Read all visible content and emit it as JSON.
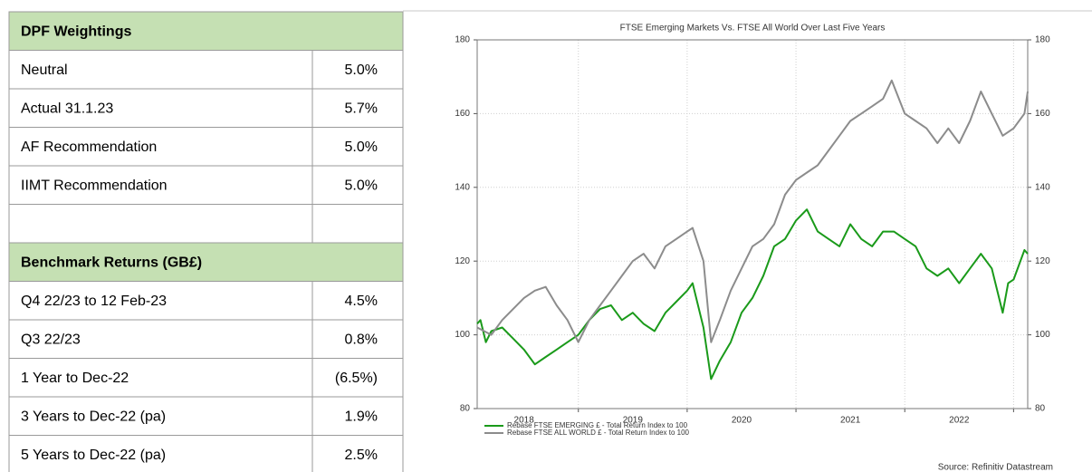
{
  "table": {
    "sections": [
      {
        "title": "DPF Weightings",
        "rows": [
          [
            "Neutral",
            "5.0%"
          ],
          [
            "Actual 31.1.23",
            "5.7%"
          ],
          [
            "AF Recommendation",
            "5.0%"
          ],
          [
            "IIMT Recommendation",
            "5.0%"
          ]
        ]
      },
      {
        "title": "Benchmark Returns (GB£)",
        "rows": [
          [
            "Q4 22/23 to 12 Feb-23",
            "4.5%"
          ],
          [
            "Q3 22/23",
            "0.8%"
          ],
          [
            "1 Year to Dec-22",
            "(6.5%)"
          ],
          [
            "3 Years to Dec-22 (pa)",
            "1.9%"
          ],
          [
            "5 Years to Dec-22 (pa)",
            "2.5%"
          ]
        ]
      }
    ]
  },
  "chart_data": {
    "type": "line",
    "title": "FTSE Emerging Markets Vs. FTSE All World Over Last Five Years",
    "source": "Source: Refinitiv Datastream",
    "xlim": [
      2018.07,
      2023.13
    ],
    "xticks": [
      {
        "value": 2018.5,
        "label": "2018"
      },
      {
        "value": 2019.5,
        "label": "2019"
      },
      {
        "value": 2020.5,
        "label": "2020"
      },
      {
        "value": 2021.5,
        "label": "2021"
      },
      {
        "value": 2022.5,
        "label": "2022"
      }
    ],
    "xgrid": [
      2019,
      2020,
      2021,
      2022,
      2023
    ],
    "ylim": [
      80,
      180
    ],
    "yticks": [
      80,
      100,
      120,
      140,
      160,
      180
    ],
    "y2lim": [
      80,
      180
    ],
    "y2ticks": [
      80,
      100,
      120,
      140,
      160,
      180
    ],
    "grid": true,
    "series": [
      {
        "name": "Rebase FTSE EMERGING £ - Total Return Index to 100",
        "color": "#1a9a1a",
        "x": [
          2018.07,
          2018.1,
          2018.15,
          2018.2,
          2018.3,
          2018.4,
          2018.5,
          2018.6,
          2018.7,
          2018.8,
          2018.9,
          2019.0,
          2019.1,
          2019.2,
          2019.3,
          2019.4,
          2019.5,
          2019.6,
          2019.7,
          2019.8,
          2019.9,
          2020.0,
          2020.05,
          2020.15,
          2020.22,
          2020.3,
          2020.4,
          2020.5,
          2020.6,
          2020.7,
          2020.8,
          2020.9,
          2021.0,
          2021.1,
          2021.2,
          2021.3,
          2021.4,
          2021.5,
          2021.6,
          2021.7,
          2021.8,
          2021.9,
          2022.0,
          2022.1,
          2022.2,
          2022.3,
          2022.4,
          2022.5,
          2022.6,
          2022.7,
          2022.8,
          2022.9,
          2022.95,
          2023.0,
          2023.1,
          2023.13
        ],
        "values": [
          103,
          104,
          98,
          101,
          102,
          99,
          96,
          92,
          94,
          96,
          98,
          100,
          104,
          107,
          108,
          104,
          106,
          103,
          101,
          106,
          109,
          112,
          114,
          102,
          88,
          93,
          98,
          106,
          110,
          116,
          124,
          126,
          131,
          134,
          128,
          126,
          124,
          130,
          126,
          124,
          128,
          128,
          126,
          124,
          118,
          116,
          118,
          114,
          118,
          122,
          118,
          106,
          114,
          115,
          123,
          122
        ]
      },
      {
        "name": "Rebase FTSE ALL WORLD £ - Total Return Index to 100",
        "color": "#8c8c8c",
        "x": [
          2018.07,
          2018.2,
          2018.3,
          2018.4,
          2018.5,
          2018.6,
          2018.7,
          2018.8,
          2018.9,
          2019.0,
          2019.1,
          2019.2,
          2019.3,
          2019.4,
          2019.5,
          2019.6,
          2019.7,
          2019.8,
          2019.9,
          2020.0,
          2020.05,
          2020.15,
          2020.22,
          2020.3,
          2020.4,
          2020.5,
          2020.6,
          2020.7,
          2020.8,
          2020.9,
          2021.0,
          2021.1,
          2021.2,
          2021.3,
          2021.4,
          2021.5,
          2021.6,
          2021.7,
          2021.8,
          2021.88,
          2022.0,
          2022.1,
          2022.2,
          2022.3,
          2022.4,
          2022.5,
          2022.6,
          2022.7,
          2022.8,
          2022.9,
          2023.0,
          2023.1,
          2023.13
        ],
        "values": [
          102,
          100,
          104,
          107,
          110,
          112,
          113,
          108,
          104,
          98,
          104,
          108,
          112,
          116,
          120,
          122,
          118,
          124,
          126,
          128,
          129,
          120,
          98,
          104,
          112,
          118,
          124,
          126,
          130,
          138,
          142,
          144,
          146,
          150,
          154,
          158,
          160,
          162,
          164,
          169,
          160,
          158,
          156,
          152,
          156,
          152,
          158,
          166,
          160,
          154,
          156,
          160,
          166
        ]
      }
    ]
  }
}
